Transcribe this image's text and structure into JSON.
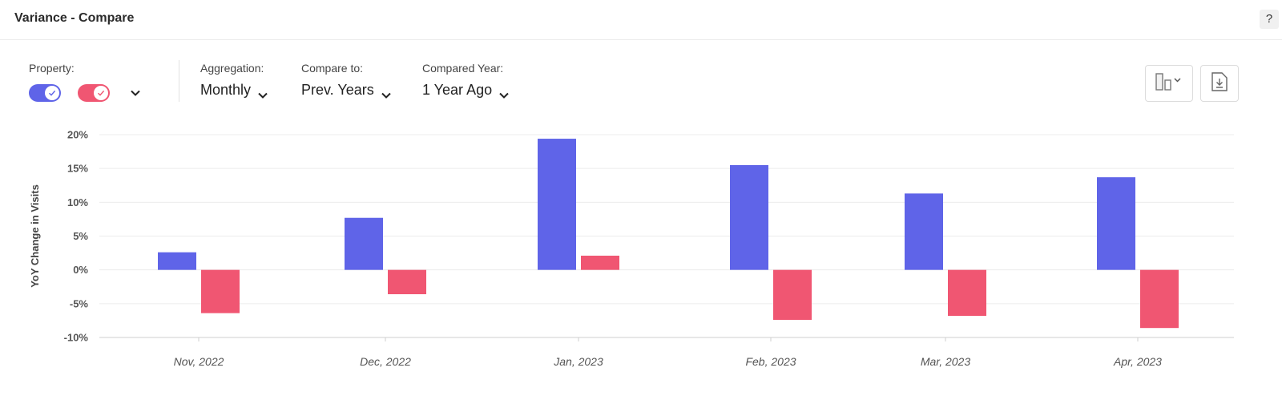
{
  "header": {
    "title": "Variance - Compare",
    "help_label": "?"
  },
  "controls": {
    "property_label": "Property:",
    "property_toggles": [
      {
        "color": "#5f64e8",
        "checked": true
      },
      {
        "color": "#f05672",
        "checked": true
      }
    ],
    "aggregation_label": "Aggregation:",
    "aggregation_value": "Monthly",
    "compare_label": "Compare to:",
    "compare_value": "Prev. Years",
    "compared_year_label": "Compared Year:",
    "compared_year_value": "1 Year Ago"
  },
  "toolbar": {
    "chart_type_icon": "bar-chart-type-icon",
    "download_icon": "download-icon"
  },
  "chart_data": {
    "type": "bar",
    "title": "",
    "xlabel": "",
    "ylabel": "YoY Change in Visits",
    "categories": [
      "Nov, 2022",
      "Dec, 2022",
      "Jan, 2023",
      "Feb, 2023",
      "Mar, 2023",
      "Apr, 2023"
    ],
    "series": [
      {
        "color": "#5f64e8",
        "values": [
          2.6,
          7.7,
          19.4,
          15.5,
          11.3,
          13.7
        ]
      },
      {
        "color": "#f05672",
        "values": [
          -6.4,
          -3.6,
          2.1,
          -7.4,
          -6.8,
          -8.6
        ]
      }
    ],
    "ylim": [
      -10,
      20
    ],
    "yticks": [
      20,
      15,
      10,
      5,
      0,
      -5,
      -10
    ],
    "ytick_labels": [
      "20%",
      "15%",
      "10%",
      "5%",
      "0%",
      "-5%",
      "-10%"
    ],
    "grid": true,
    "legend": "none"
  }
}
